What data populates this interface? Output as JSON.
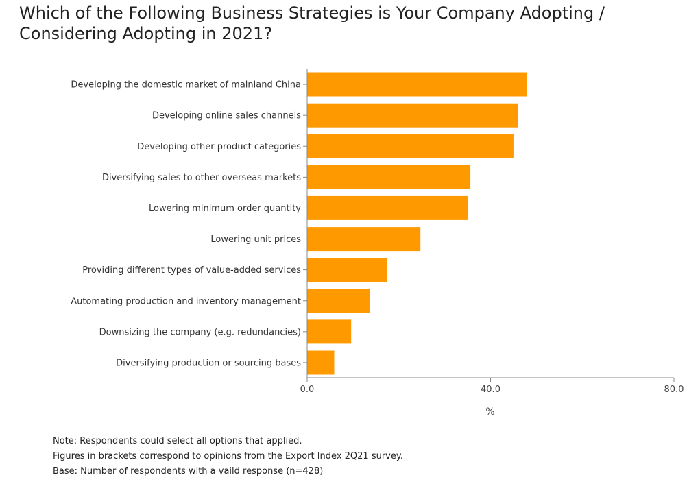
{
  "chart_data": {
    "type": "bar",
    "orientation": "horizontal",
    "title": "Which of the Following Business Strategies is Your Company Adopting / Considering Adopting in 2021?",
    "categories": [
      "Developing the domestic market of mainland China",
      "Developing online sales channels",
      "Developing other product categories",
      "Diversifying sales to other overseas markets",
      "Lowering minimum order quantity",
      "Lowering unit prices",
      "Providing different types of value-added services",
      "Automating production and inventory management",
      "Downsizing the company (e.g. redundancies)",
      "Diversifying production or sourcing bases"
    ],
    "values": [
      48.0,
      46.0,
      45.0,
      35.6,
      35.0,
      24.7,
      17.4,
      13.7,
      9.6,
      5.9
    ],
    "xlabel": "%",
    "xlim": [
      0,
      80
    ],
    "ticks": [
      {
        "value": 0,
        "label": "0.0"
      },
      {
        "value": 40,
        "label": "40.0"
      },
      {
        "value": 80,
        "label": "80.0"
      }
    ],
    "bar_color": "#ff9900",
    "grid": false,
    "legend": "none"
  },
  "notes": [
    "Note: Respondents could select all options that applied.",
    "Figures in brackets correspond to opinions from the Export Index 2Q21 survey.",
    "Base: Number of respondents with a vaild response (n=428)"
  ]
}
